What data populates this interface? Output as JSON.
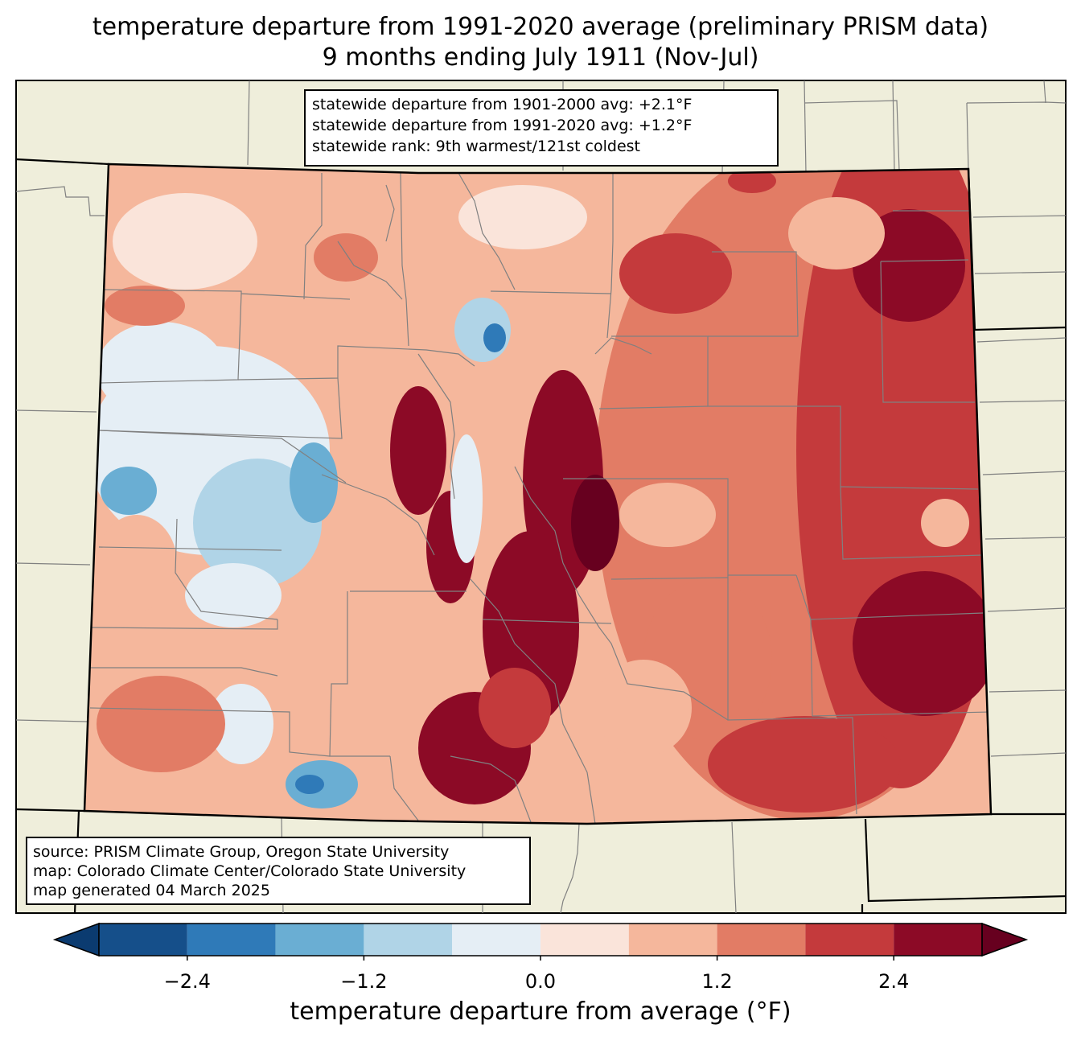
{
  "title": {
    "line1": "temperature departure from 1991-2020 average (preliminary PRISM data)",
    "line2": "9 months ending July 1911 (Nov-Jul)"
  },
  "stats_box": {
    "line1": "statewide departure from 1901-2000 avg: +2.1°F",
    "line2": "statewide departure from 1991-2020 avg: +1.2°F",
    "line3": "statewide rank: 9th warmest/121st coldest"
  },
  "source_box": {
    "line1": "source: PRISM Climate Group, Oregon State University",
    "line2": "map: Colorado Climate Center/Colorado State University",
    "line3": "map generated 04 March 2025"
  },
  "colorbar": {
    "label": "temperature departure from average (°F)",
    "ticks": [
      "−2.4",
      "−1.2",
      "0.0",
      "1.2",
      "2.4"
    ],
    "tick_values": [
      -2.4,
      -1.2,
      0.0,
      1.2,
      2.4
    ],
    "bin_edges": [
      -3.0,
      -2.4,
      -1.8,
      -1.2,
      -0.6,
      0.0,
      0.6,
      1.2,
      1.8,
      2.4,
      3.0
    ],
    "colors": [
      "#0b3b70",
      "#154f8a",
      "#2f7ab8",
      "#6aaed3",
      "#b0d4e7",
      "#e5eef5",
      "#fae4da",
      "#f5b79c",
      "#e27c65",
      "#c43a3c",
      "#8c0a26",
      "#67001f"
    ]
  },
  "map_colors": {
    "background": "#efeedb",
    "state_border": "#000000",
    "county_border": "#808080"
  }
}
